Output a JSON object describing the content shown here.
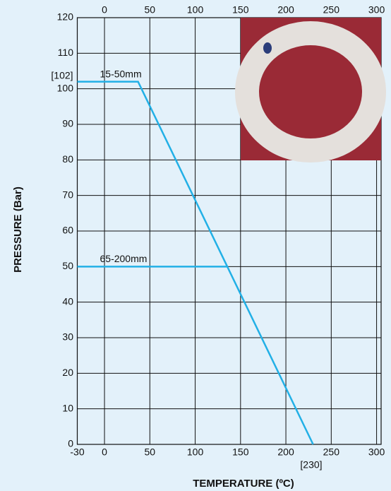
{
  "chart_data": {
    "type": "line",
    "x_label": "TEMPERATURE (ºC)",
    "y_label": "PRESSURE (Bar)",
    "xlim": [
      -30,
      305
    ],
    "ylim": [
      0,
      120
    ],
    "xticks": [
      -30,
      0,
      50,
      100,
      150,
      200,
      250,
      300
    ],
    "yticks": [
      0,
      10,
      20,
      30,
      40,
      50,
      60,
      70,
      80,
      90,
      100,
      110,
      120
    ],
    "grid": true,
    "series": [
      {
        "name": "15-50mm",
        "color": "#22b0e6",
        "x": [
          -30,
          37,
          230
        ],
        "values": [
          102,
          102,
          0
        ]
      },
      {
        "name": "65-200mm",
        "color": "#22b0e6",
        "x": [
          -30,
          135
        ],
        "values": [
          50,
          50
        ]
      }
    ],
    "annotations": [
      "[102]",
      "[230]"
    ]
  }
}
